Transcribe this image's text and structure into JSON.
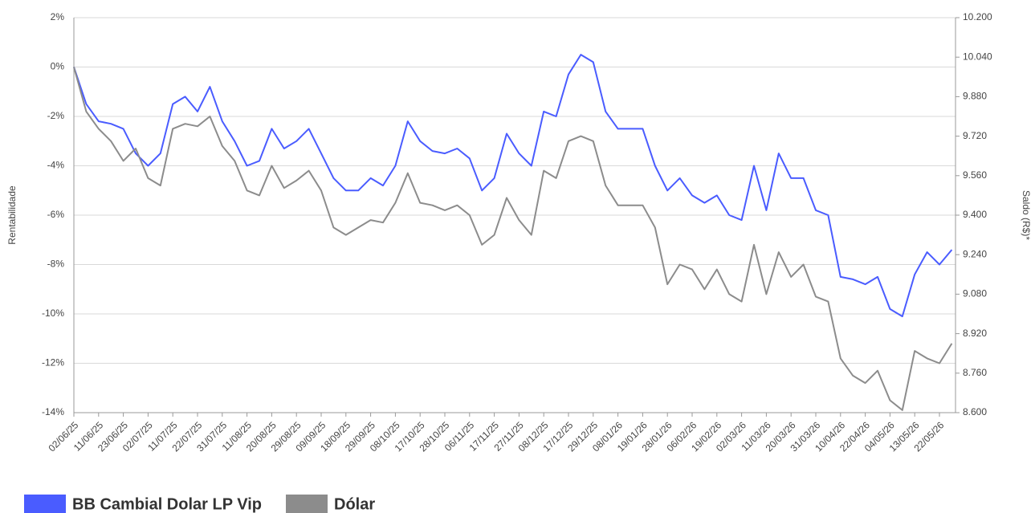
{
  "chart_data": {
    "type": "line",
    "y_label": "Rentabilidade",
    "y2_label": "Saldo (R$)*",
    "categories": [
      "02/06/25",
      null,
      "11/06/25",
      null,
      "23/06/25",
      null,
      "02/07/25",
      null,
      "11/07/25",
      null,
      "22/07/25",
      null,
      "31/07/25",
      null,
      "11/08/25",
      null,
      "20/08/25",
      null,
      "29/08/25",
      null,
      "09/09/25",
      null,
      "18/09/25",
      null,
      "29/09/25",
      null,
      "08/10/25",
      null,
      "17/10/25",
      null,
      "28/10/25",
      null,
      "06/11/25",
      null,
      "17/11/25",
      null,
      "27/11/25",
      null,
      "08/12/25",
      null,
      "17/12/25",
      null,
      "29/12/25",
      null,
      "08/01/26",
      null,
      "19/01/26",
      null,
      "28/01/26",
      null,
      "06/02/26",
      null,
      "19/02/26",
      null,
      "02/03/26",
      null,
      "11/03/26",
      null,
      "20/03/26",
      null,
      "31/03/26",
      null,
      "10/04/26",
      null,
      "22/04/26",
      null,
      "04/05/26",
      null,
      "13/05/26",
      null,
      "22/05/26",
      null
    ],
    "series": [
      {
        "name": "BB Cambial Dolar LP Vip",
        "color": "#4a5cff",
        "axis": "y",
        "values": [
          0,
          -1.5,
          -2.2,
          -2.3,
          -2.5,
          -3.5,
          -4.0,
          -3.5,
          -1.5,
          -1.2,
          -1.8,
          -0.8,
          -2.2,
          -3.0,
          -4.0,
          -3.8,
          -2.5,
          -3.3,
          -3.0,
          -2.5,
          -3.5,
          -4.5,
          -5.0,
          -5.0,
          -4.5,
          -4.8,
          -4.0,
          -2.2,
          -3.0,
          -3.4,
          -3.5,
          -3.3,
          -3.7,
          -5.0,
          -4.5,
          -2.7,
          -3.5,
          -4.0,
          -1.8,
          -2.0,
          -0.3,
          0.5,
          0.2,
          -1.8,
          -2.5,
          -2.5,
          -2.5,
          -4.0,
          -5.0,
          -4.5,
          -5.2,
          -5.5,
          -5.2,
          -6.0,
          -6.2,
          -4.0,
          -5.8,
          -3.5,
          -4.5,
          -4.5,
          -5.8,
          -6.0,
          -8.5,
          -8.6,
          -8.8,
          -8.5,
          -9.8,
          -10.1,
          -8.4,
          -7.5,
          -8.0,
          -7.4
        ]
      },
      {
        "name": "Dólar",
        "color": "#8c8c8c",
        "axis": "y",
        "values": [
          0,
          -1.8,
          -2.5,
          -3.0,
          -3.8,
          -3.3,
          -4.5,
          -4.8,
          -2.5,
          -2.3,
          -2.4,
          -2.0,
          -3.2,
          -3.8,
          -5.0,
          -5.2,
          -4.0,
          -4.9,
          -4.6,
          -4.2,
          -5.0,
          -6.5,
          -6.8,
          -6.5,
          -6.2,
          -6.3,
          -5.5,
          -4.3,
          -5.5,
          -5.6,
          -5.8,
          -5.6,
          -6.0,
          -7.2,
          -6.8,
          -5.3,
          -6.2,
          -6.8,
          -4.2,
          -4.5,
          -3.0,
          -2.8,
          -3.0,
          -4.8,
          -5.6,
          -5.6,
          -5.6,
          -6.5,
          -8.8,
          -8.0,
          -8.2,
          -9.0,
          -8.2,
          -9.2,
          -9.5,
          -7.2,
          -9.2,
          -7.5,
          -8.5,
          -8.0,
          -9.3,
          -9.5,
          -11.8,
          -12.5,
          -12.8,
          -12.3,
          -13.5,
          -13.9,
          -11.5,
          -11.8,
          -12.0,
          -11.2
        ]
      }
    ],
    "ylim": [
      -14,
      2
    ],
    "yticks": [
      {
        "value": 2,
        "label": "2%"
      },
      {
        "value": 0,
        "label": "0%"
      },
      {
        "value": -2,
        "label": "-2%"
      },
      {
        "value": -4,
        "label": "-4%"
      },
      {
        "value": -6,
        "label": "-6%"
      },
      {
        "value": -8,
        "label": "-8%"
      },
      {
        "value": -10,
        "label": "-10%"
      },
      {
        "value": -12,
        "label": "-12%"
      },
      {
        "value": -14,
        "label": "-14%"
      }
    ],
    "y2lim": [
      8600,
      10200
    ],
    "y2ticks": [
      {
        "value": 10200,
        "label": "10.200"
      },
      {
        "value": 10040,
        "label": "10.040"
      },
      {
        "value": 9880,
        "label": "9.880"
      },
      {
        "value": 9720,
        "label": "9.720"
      },
      {
        "value": 9560,
        "label": "9.560"
      },
      {
        "value": 9400,
        "label": "9.400"
      },
      {
        "value": 9240,
        "label": "9.240"
      },
      {
        "value": 9080,
        "label": "9.080"
      },
      {
        "value": 8920,
        "label": "8.920"
      },
      {
        "value": 8760,
        "label": "8.760"
      },
      {
        "value": 8600,
        "label": "8.600"
      }
    ],
    "grid": true,
    "legend": "bottom-left"
  }
}
